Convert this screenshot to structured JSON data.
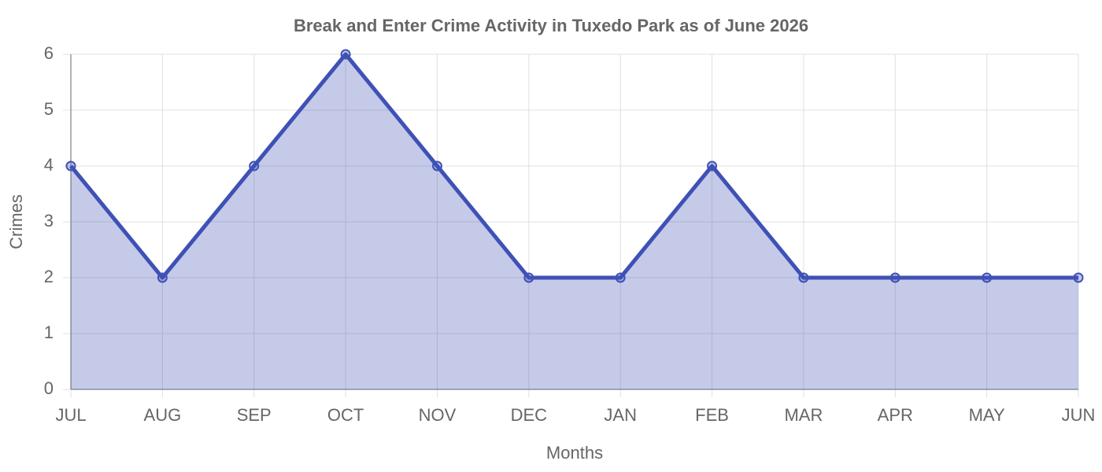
{
  "chart_data": {
    "type": "area",
    "title": "Break and Enter Crime Activity in Tuxedo Park as of June 2026",
    "x_label": "Months",
    "y_label": "Crimes",
    "categories": [
      "JUL",
      "AUG",
      "SEP",
      "OCT",
      "NOV",
      "DEC",
      "JAN",
      "FEB",
      "MAR",
      "APR",
      "MAY",
      "JUN"
    ],
    "values": [
      4,
      2,
      4,
      6,
      4,
      2,
      2,
      4,
      2,
      2,
      2,
      2
    ],
    "color": "#3f51b5",
    "fill": "rgba(63,81,181,0.3)",
    "ylim": [
      0,
      6
    ],
    "yticks": [
      0,
      1,
      2,
      3,
      4,
      5,
      6
    ],
    "grid": true
  }
}
